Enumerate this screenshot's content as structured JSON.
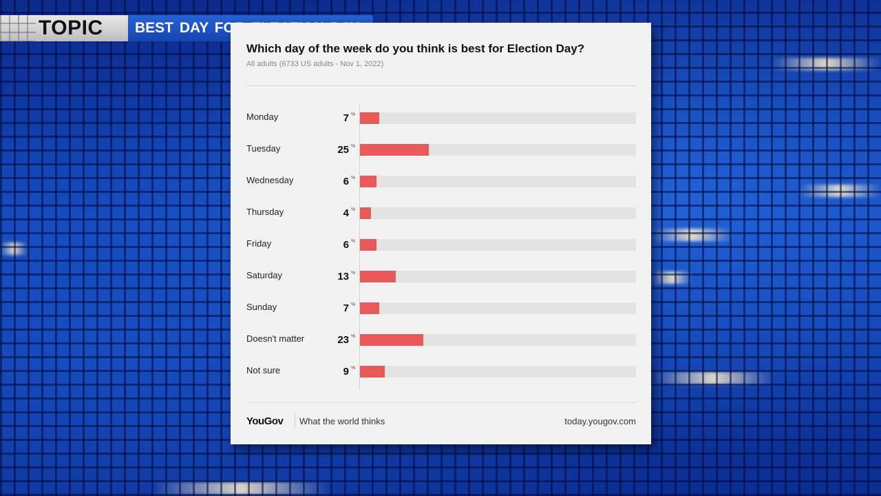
{
  "banner": {
    "topic_label": "TOPIC",
    "topic_title": "BEST DAY FOR ELECTION DAY"
  },
  "card": {
    "title": "Which day of the week do you think is best for Election Day?",
    "subtitle": "All adults (6733 US adults - Nov 1, 2022)",
    "footer_brand": "YouGov",
    "footer_tagline": "What the world thinks",
    "footer_url": "today.yougov.com"
  },
  "chart_data": {
    "type": "bar",
    "orientation": "horizontal",
    "title": "Which day of the week do you think is best for Election Day?",
    "subtitle": "All adults (6733 US adults - Nov 1, 2022)",
    "categories": [
      "Monday",
      "Tuesday",
      "Wednesday",
      "Thursday",
      "Friday",
      "Saturday",
      "Sunday",
      "Doesn't matter",
      "Not sure"
    ],
    "values": [
      7,
      25,
      6,
      4,
      6,
      13,
      7,
      23,
      9
    ],
    "unit": "%",
    "xlim": [
      0,
      100
    ],
    "grid": false,
    "bar_color": "#e85a5a",
    "track_color": "#e3e3e3"
  },
  "colors": {
    "banner_blue": "#1f56c8",
    "card_bg": "#f2f2f2",
    "bar": "#e85a5a"
  }
}
